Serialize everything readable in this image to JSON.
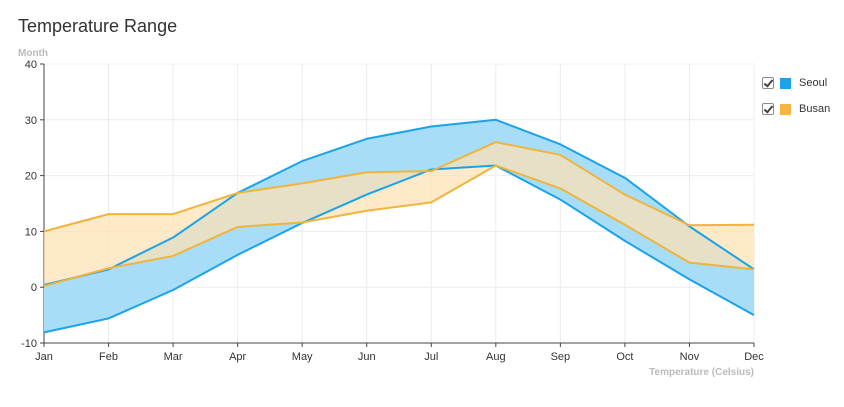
{
  "chart_data": {
    "type": "area",
    "title": "Temperature Range",
    "ylabel": "Month",
    "xlabel": "Temperature (Celsius)",
    "categories": [
      "Jan",
      "Feb",
      "Mar",
      "Apr",
      "May",
      "Jun",
      "Jul",
      "Aug",
      "Sep",
      "Oct",
      "Nov",
      "Dec"
    ],
    "ylim": [
      -10,
      40
    ],
    "yticks": [
      -10,
      0,
      10,
      20,
      30,
      40
    ],
    "grid": true,
    "legend_position": "right",
    "series": [
      {
        "name": "Seoul",
        "color": "#1aa3e8",
        "fill": "#a8ddf8",
        "high": [
          0.4,
          3.2,
          8.9,
          16.9,
          22.6,
          26.6,
          28.8,
          30.0,
          25.6,
          19.6,
          10.9,
          3.2
        ],
        "low": [
          -8.1,
          -5.6,
          -0.5,
          5.8,
          11.5,
          16.6,
          21.1,
          21.8,
          15.7,
          8.3,
          1.4,
          -5.0
        ]
      },
      {
        "name": "Busan",
        "color": "#f0b43c",
        "fill": "#fde1b3",
        "high": [
          10.0,
          13.1,
          13.1,
          16.9,
          18.6,
          20.6,
          20.8,
          26.0,
          23.7,
          16.6,
          11.1,
          11.2
        ],
        "low": [
          0.2,
          3.4,
          5.6,
          10.8,
          11.6,
          13.7,
          15.2,
          21.8,
          17.7,
          11.2,
          4.4,
          3.2
        ]
      }
    ]
  }
}
